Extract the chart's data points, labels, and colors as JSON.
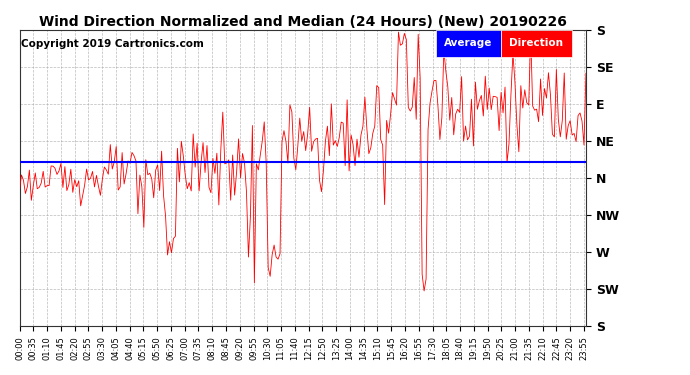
{
  "title": "Wind Direction Normalized and Median (24 Hours) (New) 20190226",
  "copyright": "Copyright 2019 Cartronics.com",
  "ytick_labels": [
    "S",
    "SE",
    "E",
    "NE",
    "N",
    "NW",
    "W",
    "SW",
    "S"
  ],
  "ytick_values": [
    360,
    315,
    270,
    225,
    180,
    135,
    90,
    45,
    0
  ],
  "ylim": [
    0,
    360
  ],
  "avg_direction": 200,
  "data_color": "#ff0000",
  "avg_line_color": "#0000ff",
  "background_color": "#ffffff",
  "grid_color": "#aaaaaa",
  "title_fontsize": 10,
  "copyright_fontsize": 7.5,
  "xtick_interval_min": 35,
  "n_points": 288
}
